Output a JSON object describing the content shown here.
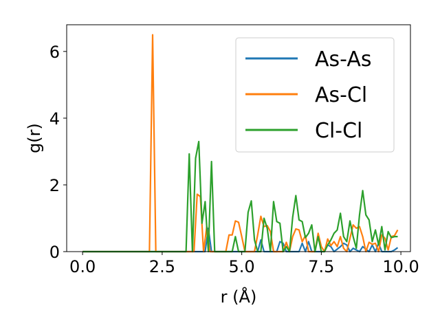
{
  "chart_data": {
    "type": "line",
    "xlabel": "r (Å)",
    "ylabel": "g(r)",
    "xlim": [
      -0.5,
      10.3
    ],
    "ylim": [
      0,
      6.8
    ],
    "xticks": [
      0.0,
      2.5,
      5.0,
      7.5,
      10.0
    ],
    "xtick_labels": [
      "0.0",
      "2.5",
      "5.0",
      "7.5",
      "10.0"
    ],
    "yticks": [
      0,
      2,
      4,
      6
    ],
    "ytick_labels": [
      "0",
      "2",
      "4",
      "6"
    ],
    "grid": false,
    "legend_position": "upper-right",
    "series": [
      {
        "name": "As-As",
        "color": "#1f77b4",
        "x": [
          0.0,
          3.85,
          3.95,
          4.05,
          4.15,
          5.5,
          5.6,
          5.7,
          5.8,
          6.1,
          6.2,
          6.3,
          6.4,
          6.8,
          6.9,
          7.0,
          7.1,
          7.2,
          7.3,
          7.6,
          7.7,
          7.8,
          7.9,
          8.1,
          8.2,
          8.3,
          8.4,
          8.5,
          8.7,
          8.8,
          9.0,
          9.1,
          9.2,
          9.3,
          9.4,
          9.7,
          9.8,
          9.9
        ],
        "y": [
          0.0,
          0.0,
          0.7,
          0.0,
          0.0,
          0.0,
          0.35,
          0.0,
          0.0,
          0.0,
          0.3,
          0.25,
          0.0,
          0.0,
          0.25,
          0.0,
          0.3,
          0.0,
          0.0,
          0.0,
          0.2,
          0.15,
          0.0,
          0.15,
          0.25,
          0.2,
          0.0,
          0.1,
          0.0,
          0.15,
          0.0,
          0.2,
          0.0,
          0.25,
          0.0,
          0.0,
          0.05,
          0.12
        ]
      },
      {
        "name": "As-Cl",
        "color": "#ff7f0e",
        "x": [
          0.0,
          2.1,
          2.2,
          2.3,
          3.5,
          3.6,
          3.7,
          3.8,
          3.9,
          4.0,
          4.5,
          4.6,
          4.7,
          4.8,
          4.9,
          5.0,
          5.1,
          5.4,
          5.5,
          5.6,
          5.7,
          5.8,
          5.9,
          6.0,
          6.3,
          6.4,
          6.5,
          6.6,
          6.7,
          6.8,
          6.9,
          7.0,
          7.1,
          7.3,
          7.4,
          7.5,
          7.6,
          7.7,
          7.8,
          7.9,
          8.0,
          8.1,
          8.2,
          8.3,
          8.5,
          8.6,
          8.7,
          8.8,
          8.9,
          9.0,
          9.1,
          9.2,
          9.3,
          9.4,
          9.5,
          9.6,
          9.7,
          9.8,
          9.9
        ],
        "y": [
          0.0,
          0.0,
          6.5,
          0.0,
          0.0,
          1.72,
          1.65,
          0.0,
          0.75,
          0.0,
          0.0,
          0.5,
          0.5,
          0.92,
          0.88,
          0.45,
          0.0,
          0.0,
          0.5,
          1.06,
          0.75,
          0.78,
          0.6,
          0.0,
          0.0,
          0.28,
          0.0,
          0.45,
          0.68,
          0.65,
          0.3,
          0.48,
          0.0,
          0.0,
          0.55,
          0.15,
          0.0,
          0.38,
          0.18,
          0.3,
          0.15,
          0.45,
          0.1,
          0.0,
          0.8,
          0.7,
          0.75,
          0.45,
          0.0,
          0.28,
          0.22,
          0.25,
          0.0,
          0.5,
          0.4,
          0.05,
          0.45,
          0.48,
          0.65
        ]
      },
      {
        "name": "Cl-Cl",
        "color": "#2ca02c",
        "x": [
          0.0,
          3.25,
          3.35,
          3.45,
          3.55,
          3.65,
          3.75,
          3.85,
          3.95,
          4.05,
          4.15,
          4.7,
          4.8,
          4.9,
          5.1,
          5.2,
          5.3,
          5.4,
          5.5,
          5.6,
          5.7,
          5.8,
          5.9,
          6.0,
          6.1,
          6.2,
          6.3,
          6.4,
          6.5,
          6.6,
          6.7,
          6.8,
          6.9,
          7.0,
          7.1,
          7.2,
          7.3,
          7.4,
          7.5,
          7.6,
          7.7,
          7.8,
          7.9,
          8.0,
          8.1,
          8.2,
          8.3,
          8.4,
          8.5,
          8.6,
          8.7,
          8.8,
          8.9,
          9.0,
          9.1,
          9.2,
          9.3,
          9.4,
          9.5,
          9.6,
          9.7,
          9.8,
          9.9
        ],
        "y": [
          0.0,
          0.0,
          2.93,
          0.0,
          2.8,
          3.3,
          0.85,
          1.5,
          0.0,
          2.7,
          0.0,
          0.0,
          0.45,
          0.0,
          0.0,
          1.18,
          1.52,
          0.35,
          0.0,
          0.0,
          1.0,
          0.7,
          0.0,
          1.5,
          0.9,
          0.85,
          0.0,
          0.15,
          0.0,
          1.03,
          1.68,
          0.95,
          0.9,
          0.42,
          0.55,
          0.8,
          0.0,
          0.45,
          0.0,
          0.0,
          0.2,
          0.35,
          0.55,
          0.65,
          1.15,
          0.45,
          0.3,
          0.92,
          0.45,
          0.1,
          1.1,
          1.83,
          1.1,
          0.95,
          0.3,
          0.65,
          0.2,
          0.75,
          0.05,
          0.6,
          0.42,
          0.45,
          0.45
        ]
      }
    ]
  }
}
